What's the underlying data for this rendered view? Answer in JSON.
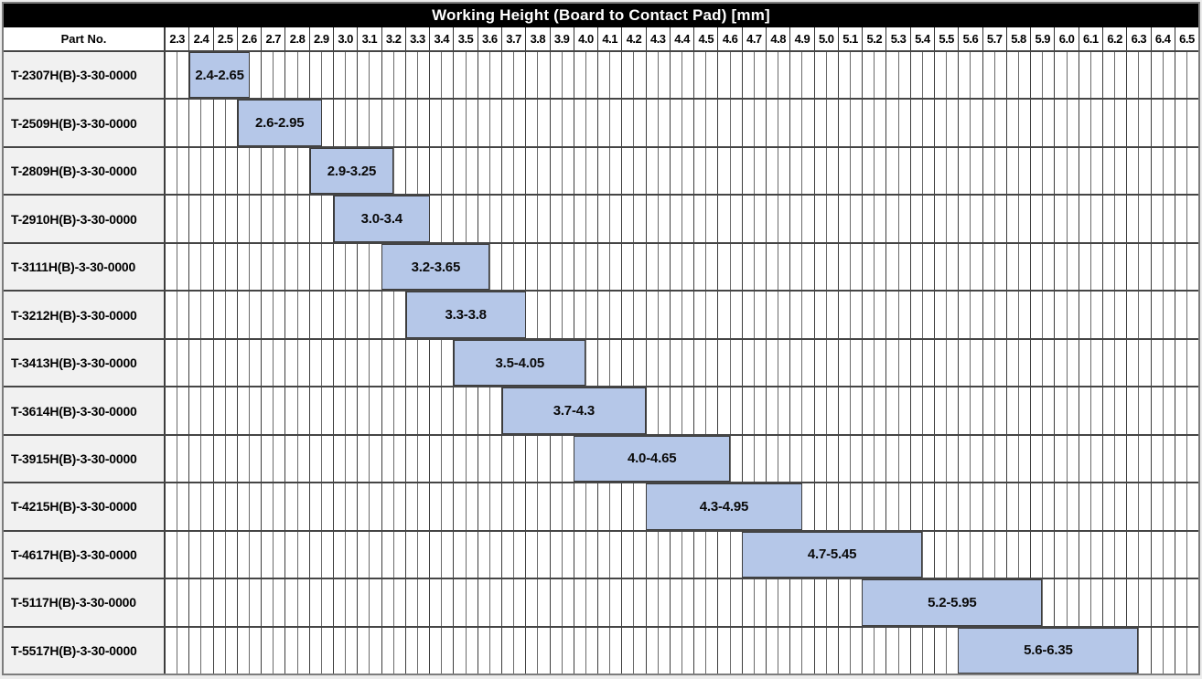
{
  "title": "Working Height (Board to Contact Pad) [mm]",
  "header": {
    "part_no_label": "Part No."
  },
  "axis": {
    "min": 2.3,
    "max": 6.6,
    "tick_step": 0.1,
    "sub_step": 0.05,
    "ticks": [
      "2.3",
      "2.4",
      "2.5",
      "2.6",
      "2.7",
      "2.8",
      "2.9",
      "3.0",
      "3.1",
      "3.2",
      "3.3",
      "3.4",
      "3.5",
      "3.6",
      "3.7",
      "3.8",
      "3.9",
      "4.0",
      "4.1",
      "4.2",
      "4.3",
      "4.4",
      "4.5",
      "4.6",
      "4.7",
      "4.8",
      "4.9",
      "5.0",
      "5.1",
      "5.2",
      "5.3",
      "5.4",
      "5.5",
      "5.6",
      "5.7",
      "5.8",
      "5.9",
      "6.0",
      "6.1",
      "6.2",
      "6.3",
      "6.4",
      "6.5"
    ]
  },
  "colors": {
    "bar_fill": "#b5c7e8",
    "bar_border": "#3c3c3c",
    "title_bg": "#000000",
    "title_text": "#ffffff",
    "part_col_bg": "#f1f1f1",
    "grid_col_line": "#3d3d3d",
    "grid_half_line": "#6a6a6a"
  },
  "chart_data": {
    "type": "bar",
    "subtype": "horizontal-range-gantt",
    "title": "Working Height (Board to Contact Pad) [mm]",
    "categories": [
      "T-2307H(B)-3-30-0000",
      "T-2509H(B)-3-30-0000",
      "T-2809H(B)-3-30-0000",
      "T-2910H(B)-3-30-0000",
      "T-3111H(B)-3-30-0000",
      "T-3212H(B)-3-30-0000",
      "T-3413H(B)-3-30-0000",
      "T-3614H(B)-3-30-0000",
      "T-3915H(B)-3-30-0000",
      "T-4215H(B)-3-30-0000",
      "T-4617H(B)-3-30-0000",
      "T-5117H(B)-3-30-0000",
      "T-5517H(B)-3-30-0000"
    ],
    "ranges": [
      {
        "start": 2.4,
        "end": 2.65,
        "label": "2.4-2.65"
      },
      {
        "start": 2.6,
        "end": 2.95,
        "label": "2.6-2.95"
      },
      {
        "start": 2.9,
        "end": 3.25,
        "label": "2.9-3.25"
      },
      {
        "start": 3.0,
        "end": 3.4,
        "label": "3.0-3.4"
      },
      {
        "start": 3.2,
        "end": 3.65,
        "label": "3.2-3.65"
      },
      {
        "start": 3.3,
        "end": 3.8,
        "label": "3.3-3.8"
      },
      {
        "start": 3.5,
        "end": 4.05,
        "label": "3.5-4.05"
      },
      {
        "start": 3.7,
        "end": 4.3,
        "label": "3.7-4.3"
      },
      {
        "start": 4.0,
        "end": 4.65,
        "label": "4.0-4.65"
      },
      {
        "start": 4.3,
        "end": 4.95,
        "label": "4.3-4.95"
      },
      {
        "start": 4.7,
        "end": 5.45,
        "label": "4.7-5.45"
      },
      {
        "start": 5.2,
        "end": 5.95,
        "label": "5.2-5.95"
      },
      {
        "start": 5.6,
        "end": 6.35,
        "label": "5.6-6.35"
      }
    ],
    "xlim": [
      2.3,
      6.6
    ],
    "x_tick_step": 0.1,
    "grid": true,
    "legend": false,
    "ylabel": "Part No.",
    "xlabel": "Working Height (Board to Contact Pad) [mm]"
  }
}
